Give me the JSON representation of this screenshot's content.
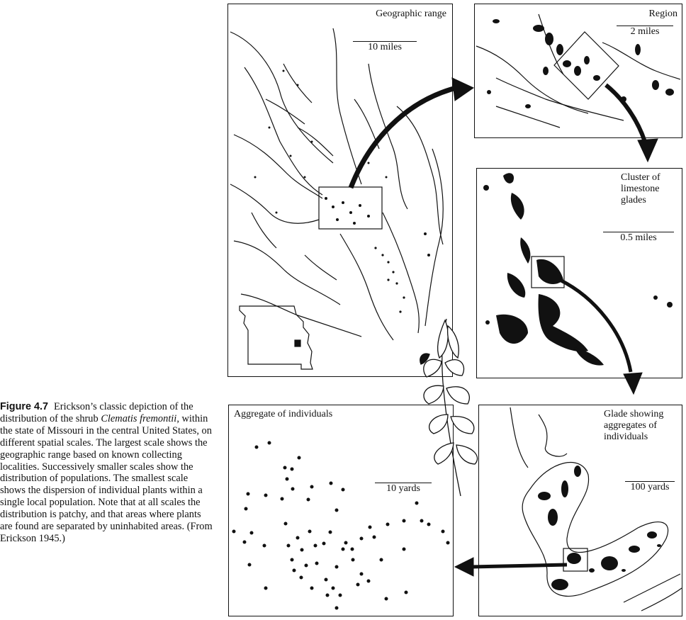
{
  "caption": {
    "figure_number": "Figure 4.7",
    "text_1": "Erickson’s classic depiction of the distribution of the shrub ",
    "species": "Clematis fremontii",
    "text_2": ", within the state of Missouri in the central United States, on different spatial scales. The largest scale shows the geographic range based on known collecting localities. Successively smaller scales show the distribution of populations. The smallest scale shows the dispersion of individual plants within a single local population. Note that at all scales the distribution is patchy, and that areas where plants are found are separated by uninhabited areas. (From Erickson 1945.)"
  },
  "panels": {
    "geographic": {
      "title": "Geographic range",
      "scale": "10 miles"
    },
    "region": {
      "title": "Region",
      "scale": "2 miles"
    },
    "cluster": {
      "title": "Cluster of limestone glades",
      "scale": "0.5 miles"
    },
    "glade": {
      "title": "Glade showing aggregates of individuals",
      "scale": "100 yards"
    },
    "aggregate": {
      "title": "Aggregate of individuals",
      "scale": "10 yards"
    }
  },
  "colors": {
    "ink": "#111111",
    "background": "#ffffff"
  }
}
